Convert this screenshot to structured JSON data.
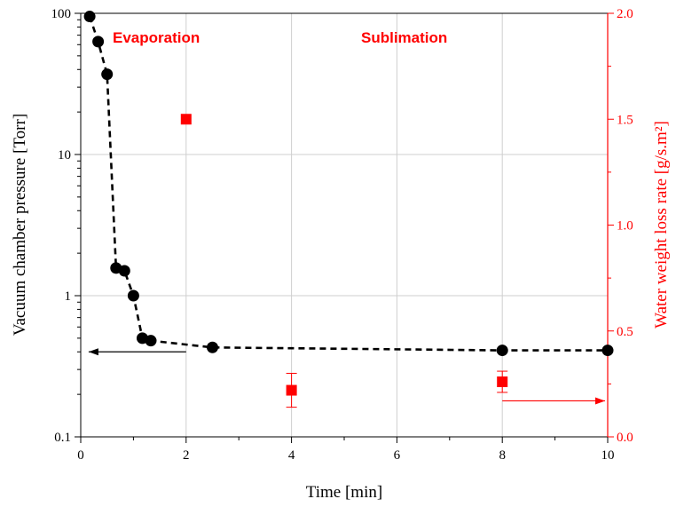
{
  "chart_data": {
    "type": "scatter",
    "xlabel": "Time [min]",
    "ylabel_left": "Vacuum chamber pressure [Torr]",
    "ylabel_right": "Water weight loss rate [g/s.m²]",
    "xlim": [
      0,
      10
    ],
    "ylim_left": [
      0.1,
      100
    ],
    "yscale_left": "log",
    "ylim_right": [
      0,
      2
    ],
    "x_ticks": [
      "0",
      "2",
      "4",
      "6",
      "8",
      "10"
    ],
    "y_left_ticks": [
      "0.1",
      "1",
      "10",
      "100"
    ],
    "y_right_ticks": [
      "0.0",
      "0.5",
      "1.0",
      "1.5",
      "2.0"
    ],
    "grid": true,
    "annotations": [
      "Evaporation",
      "Sublimation"
    ],
    "pressure": {
      "axis": "left",
      "marker": "circle",
      "line": "dashed",
      "color": "#000000",
      "points": [
        {
          "x": 0.17,
          "y": 95
        },
        {
          "x": 0.33,
          "y": 63
        },
        {
          "x": 0.5,
          "y": 37
        },
        {
          "x": 0.67,
          "y": 1.57
        },
        {
          "x": 0.83,
          "y": 1.5
        },
        {
          "x": 1.0,
          "y": 1.0
        },
        {
          "x": 1.17,
          "y": 0.5
        },
        {
          "x": 1.33,
          "y": 0.48
        },
        {
          "x": 2.5,
          "y": 0.43
        },
        {
          "x": 8.0,
          "y": 0.41
        },
        {
          "x": 10.0,
          "y": 0.41
        }
      ]
    },
    "weight_loss": {
      "axis": "right",
      "marker": "square",
      "color": "#ff0000",
      "points": [
        {
          "x": 2.0,
          "y": 1.5,
          "err": 0
        },
        {
          "x": 4.0,
          "y": 0.22,
          "err": 0.08
        },
        {
          "x": 8.0,
          "y": 0.26,
          "err": 0.05
        }
      ]
    },
    "arrows": [
      {
        "axis": "left",
        "color": "#000000",
        "from": {
          "x": 2.0,
          "y": 0.4
        },
        "to": {
          "x": 0.15,
          "y": 0.4
        }
      },
      {
        "axis": "right",
        "color": "#ff0000",
        "from": {
          "x": 8.0,
          "y": 0.17
        },
        "to": {
          "x": 9.95,
          "y": 0.17
        }
      }
    ]
  }
}
